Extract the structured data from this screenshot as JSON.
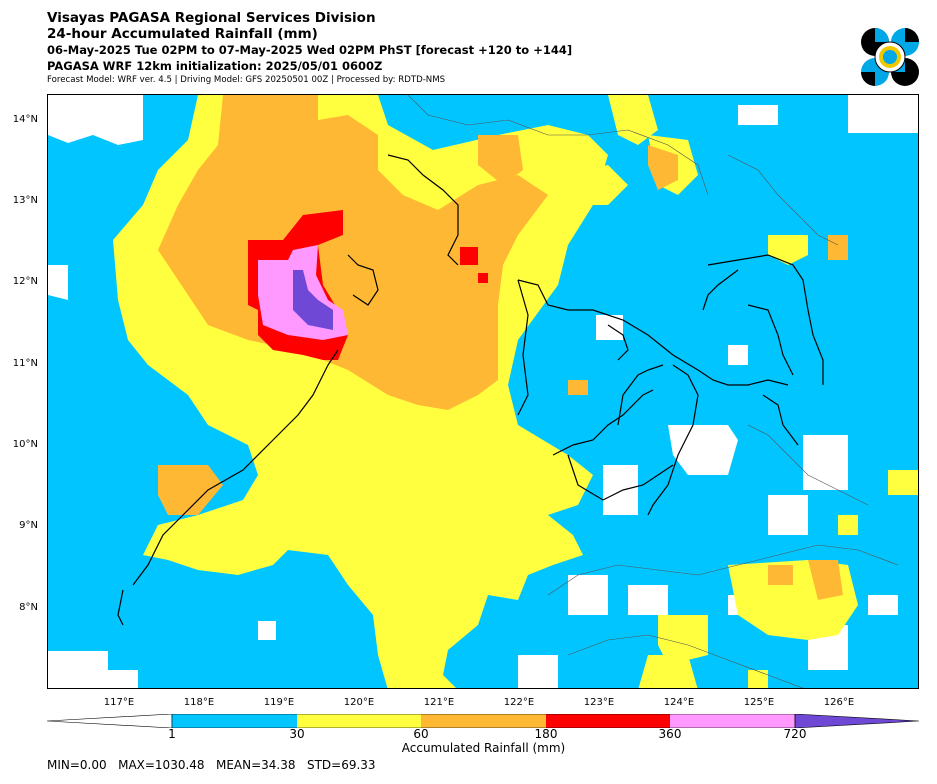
{
  "header": {
    "title1": "Visayas PAGASA Regional Services Division",
    "title2": "24-hour Accumulated Rainfall (mm)",
    "title3": "06-May-2025 Tue 02PM to 07-May-2025 Wed 02PM PhST [forecast +120 to +144]",
    "title4": "PAGASA WRF 12km initialization: 2025/05/01 0600Z",
    "subtitle": "Forecast Model: WRF ver. 4.5 | Driving Model: GFS 20250501 00Z | Processed by: RDTD-NMS"
  },
  "logo": {
    "icon": "pagasa-logo-icon",
    "colors": [
      "#000000",
      "#00a8e8",
      "#f0c800"
    ]
  },
  "map": {
    "lat_labels": [
      "14°N",
      "13°N",
      "12°N",
      "11°N",
      "10°N",
      "9°N",
      "8°N"
    ],
    "lon_labels": [
      "117°E",
      "118°E",
      "119°E",
      "120°E",
      "121°E",
      "122°E",
      "123°E",
      "124°E",
      "125°E",
      "126°E"
    ]
  },
  "colorbar": {
    "title": "Accumulated Rainfall (mm)",
    "ticks": [
      "1",
      "30",
      "60",
      "180",
      "360",
      "720"
    ],
    "colors": [
      "#00c5ff",
      "#ffff40",
      "#ffb833",
      "#ff0000",
      "#ff99ff",
      "#6f48d6"
    ]
  },
  "stats": {
    "text": "MIN=0.00   MAX=1030.48   MEAN=34.38   STD=69.33"
  }
}
